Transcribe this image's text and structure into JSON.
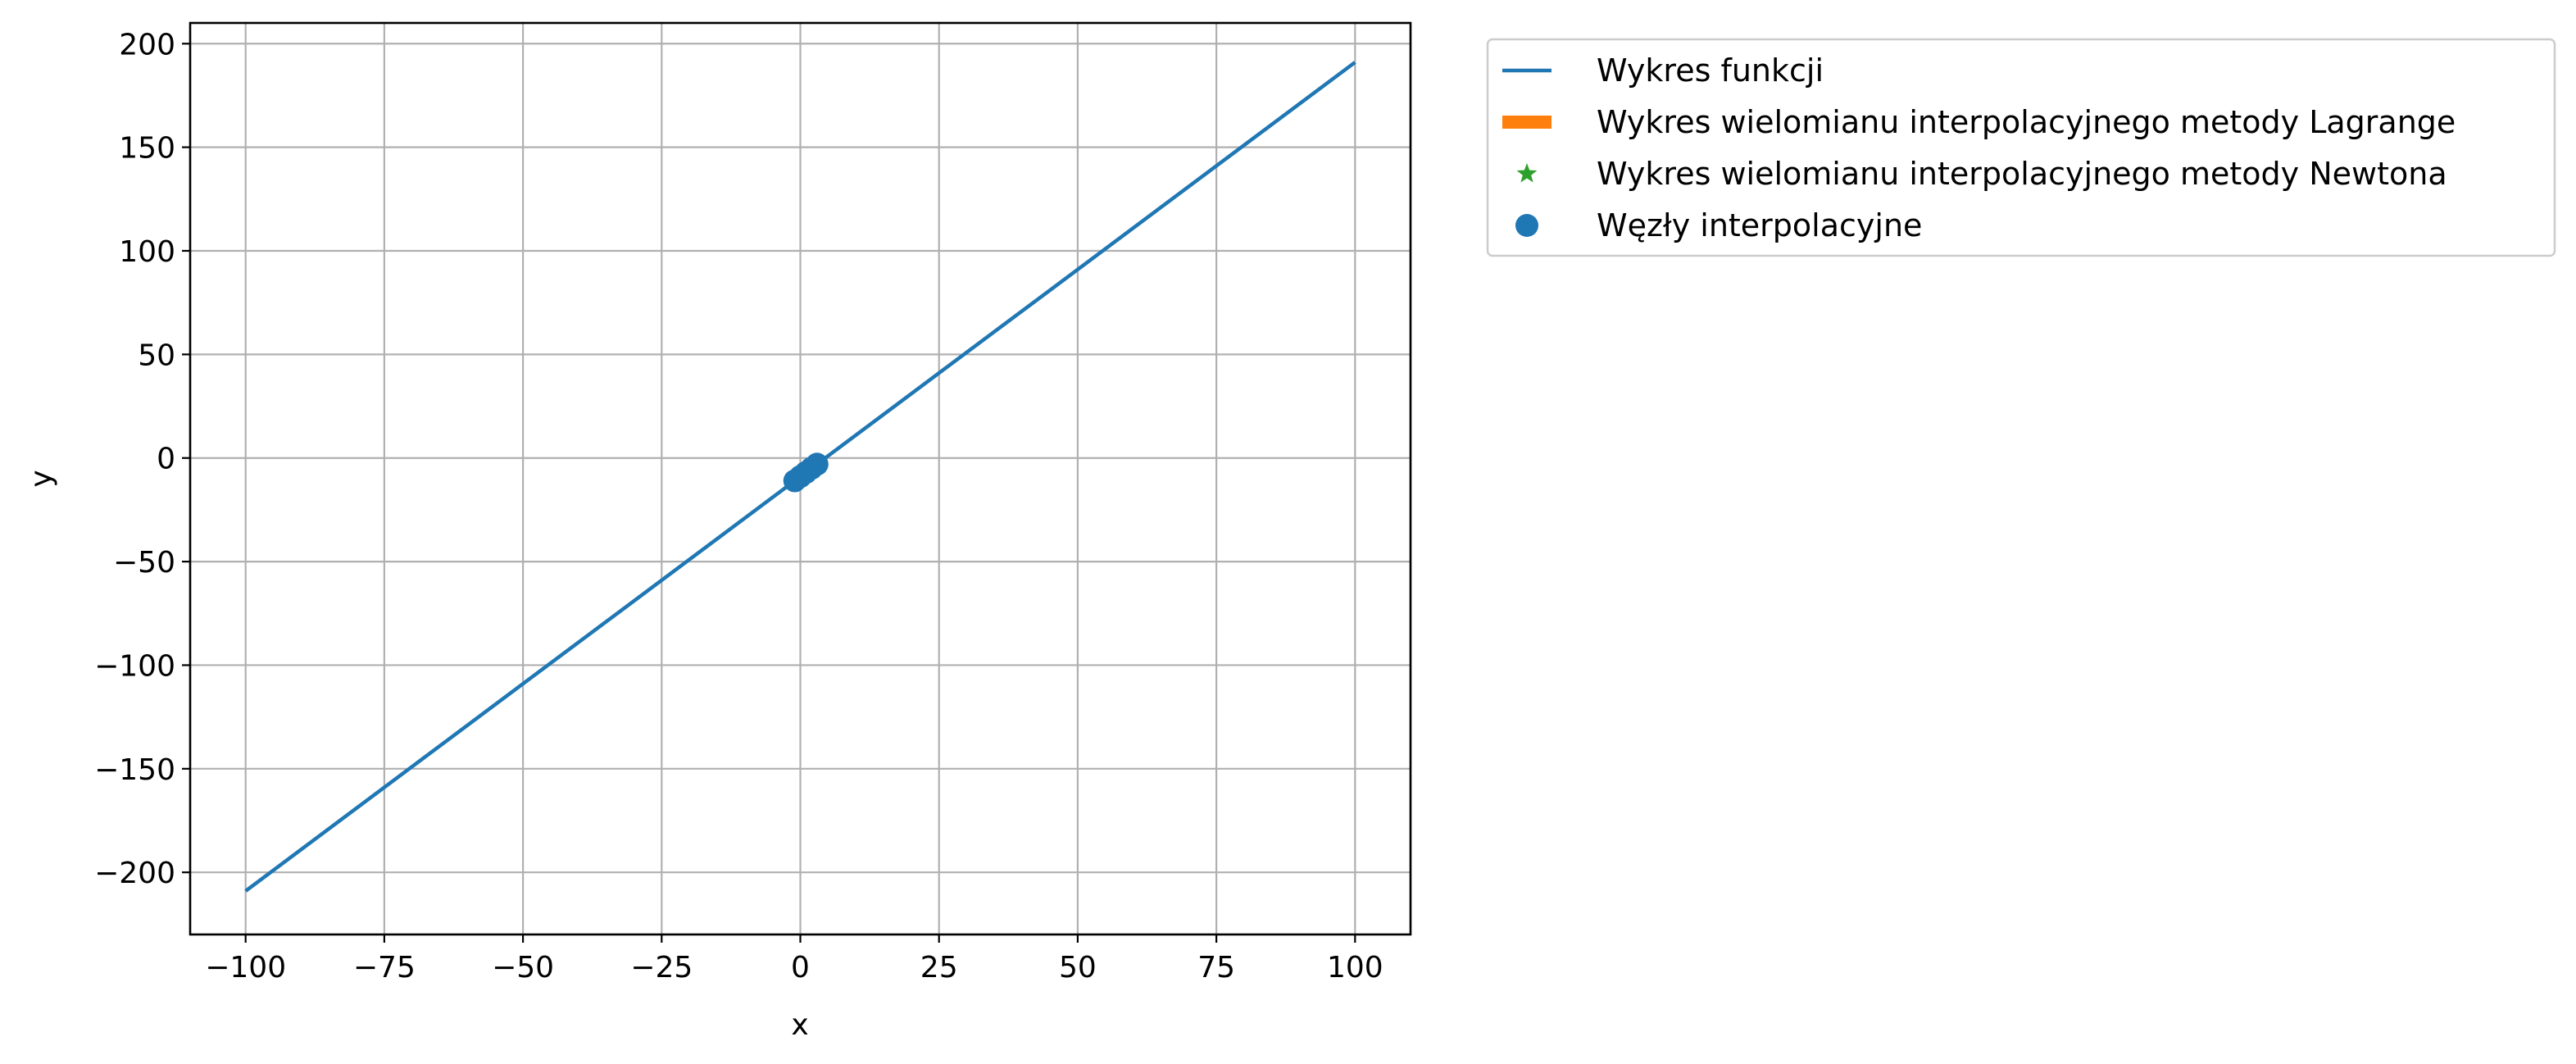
{
  "chart_data": {
    "type": "line",
    "title": "",
    "xlabel": "x",
    "ylabel": "y",
    "xlim": [
      -110,
      110
    ],
    "ylim": [
      -230,
      210
    ],
    "xticks": [
      -100,
      -75,
      -50,
      -25,
      0,
      25,
      50,
      75,
      100
    ],
    "xtick_labels": [
      "−100",
      "−75",
      "−50",
      "−25",
      "0",
      "25",
      "50",
      "75",
      "100"
    ],
    "yticks": [
      -200,
      -150,
      -100,
      -50,
      0,
      50,
      100,
      150,
      200
    ],
    "ytick_labels": [
      "−200",
      "−150",
      "−100",
      "−50",
      "0",
      "50",
      "100",
      "150",
      "200"
    ],
    "grid": true,
    "legend_position": "outside upper right",
    "series": [
      {
        "name": "Wykres funkcji",
        "kind": "line",
        "color": "#1f77b4",
        "x": [
          -100,
          100
        ],
        "y": [
          -209,
          191
        ]
      },
      {
        "name": "Wykres wielomianu interpolacyjnego metody Lagrange",
        "kind": "line",
        "color": "#ff7f0e",
        "x": [
          -1,
          0,
          1,
          2,
          3
        ],
        "y": [
          -11,
          -9,
          -7,
          -5,
          -3
        ]
      },
      {
        "name": "Wykres wielomianu interpolacyjnego metody Newtona",
        "kind": "star",
        "color": "#2ca02c",
        "x": [
          -1,
          0,
          1,
          2,
          3
        ],
        "y": [
          -11,
          -9,
          -7,
          -5,
          -3
        ]
      },
      {
        "name": "Węzły interpolacyjne",
        "kind": "scatter",
        "color": "#1f77b4",
        "x": [
          -1,
          0,
          1,
          2,
          3
        ],
        "y": [
          -11,
          -9,
          -7,
          -5,
          -3
        ]
      }
    ]
  }
}
